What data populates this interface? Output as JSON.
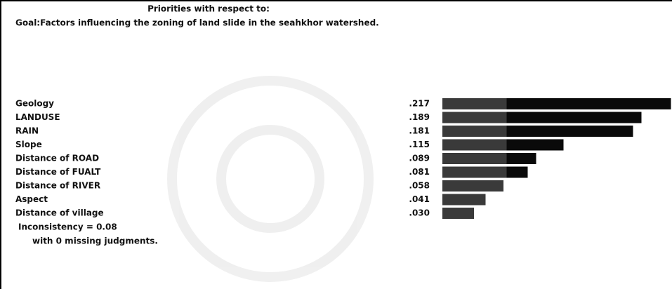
{
  "chart_data": {
    "type": "bar",
    "title": "Priorities with respect to:",
    "subtitle": "Goal:Factors influencing the zoning of land slide in the seahkhor watershed.",
    "categories": [
      "Geology",
      "LANDUSE",
      "RAIN",
      "Slope",
      "Distance of ROAD",
      "Distance of FUALT",
      "Distance of RIVER",
      "Aspect",
      "Distance of village"
    ],
    "values": [
      0.217,
      0.189,
      0.181,
      0.115,
      0.089,
      0.081,
      0.058,
      0.041,
      0.03
    ],
    "value_labels": [
      ".217",
      ".189",
      ".181",
      ".115",
      ".089",
      ".081",
      ".058",
      ".041",
      ".030"
    ],
    "color": "#111111",
    "annotations": [
      "Inconsistency = 0.08",
      "with 0  missing judgments."
    ]
  }
}
